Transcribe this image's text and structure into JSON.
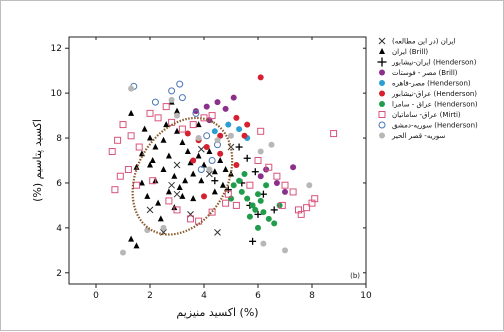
{
  "chart_data": {
    "type": "scatter",
    "panel_label": "(b)",
    "xlabel": "اکسید منیزیم (%)",
    "ylabel": "(%) اکسید پتاسیم",
    "xlim": [
      -1,
      10
    ],
    "ylim": [
      1.5,
      12.5
    ],
    "x_ticks": [
      0,
      2,
      4,
      6,
      8,
      10
    ],
    "y_ticks": [
      2,
      4,
      6,
      8,
      10,
      12
    ],
    "legend_position": "right",
    "ellipse": {
      "cx": 3.2,
      "cy": 6.3,
      "rx": 2.3,
      "ry": 2.0,
      "angle_deg": -60,
      "color": "#8a5a2b"
    },
    "series": [
      {
        "name": "ایران (در این مطالعه)",
        "marker": "x",
        "color": "#333333",
        "points": [
          [
            3.0,
            5.5
          ],
          [
            2.5,
            3.8
          ],
          [
            4.5,
            3.8
          ],
          [
            2.0,
            4.8
          ],
          [
            3.5,
            4.6
          ],
          [
            4.2,
            6.4
          ],
          [
            5.0,
            7.6
          ],
          [
            3.0,
            6.8
          ],
          [
            2.8,
            5.9
          ],
          [
            3.9,
            7.5
          ]
        ]
      },
      {
        "name": "ایران (Brill)",
        "marker": "triangle",
        "color": "#000000",
        "points": [
          [
            1.3,
            9.1
          ],
          [
            1.8,
            8.4
          ],
          [
            2.0,
            8.0
          ],
          [
            2.2,
            7.6
          ],
          [
            2.5,
            7.9
          ],
          [
            2.6,
            8.6
          ],
          [
            3.0,
            8.3
          ],
          [
            3.2,
            7.8
          ],
          [
            3.4,
            7.4
          ],
          [
            3.5,
            6.9
          ],
          [
            3.8,
            7.2
          ],
          [
            4.0,
            6.8
          ],
          [
            4.2,
            7.4
          ],
          [
            4.4,
            6.5
          ],
          [
            1.5,
            6.7
          ],
          [
            1.7,
            6.0
          ],
          [
            2.0,
            6.8
          ],
          [
            2.2,
            6.1
          ],
          [
            2.5,
            6.6
          ],
          [
            2.7,
            7.2
          ],
          [
            2.9,
            6.3
          ],
          [
            3.1,
            5.8
          ],
          [
            3.3,
            6.1
          ],
          [
            3.6,
            6.4
          ],
          [
            3.9,
            6.1
          ],
          [
            1.9,
            5.4
          ],
          [
            2.3,
            5.1
          ],
          [
            2.7,
            5.6
          ],
          [
            3.2,
            5.4
          ],
          [
            3.6,
            5.3
          ],
          [
            1.7,
            7.3
          ],
          [
            2.1,
            7.0
          ],
          [
            4.6,
            7.0
          ],
          [
            4.8,
            6.6
          ],
          [
            5.0,
            6.4
          ],
          [
            1.3,
            3.5
          ],
          [
            1.5,
            3.2
          ],
          [
            2.9,
            4.9
          ],
          [
            2.4,
            4.4
          ],
          [
            4.4,
            5.6
          ],
          [
            4.7,
            5.9
          ],
          [
            3.0,
            9.2
          ],
          [
            2.8,
            9.6
          ],
          [
            3.8,
            8.6
          ]
        ]
      },
      {
        "name": "ایران-نیشابور (Henderson)",
        "marker": "plus",
        "color": "#000000",
        "points": [
          [
            5.6,
            7.1
          ],
          [
            5.9,
            6.5
          ],
          [
            5.4,
            6.0
          ],
          [
            5.7,
            5.0
          ],
          [
            6.0,
            4.6
          ],
          [
            6.2,
            5.5
          ],
          [
            4.9,
            5.7
          ],
          [
            5.3,
            7.6
          ],
          [
            5.8,
            3.4
          ],
          [
            6.6,
            4.8
          ],
          [
            4.4,
            6.1
          ]
        ]
      },
      {
        "name": "مصر - فوستات (Brill)",
        "marker": "circle",
        "color": "#8b2f8b",
        "points": [
          [
            3.7,
            9.2
          ],
          [
            4.1,
            9.4
          ],
          [
            4.5,
            9.6
          ],
          [
            4.8,
            9.3
          ],
          [
            5.1,
            9.8
          ],
          [
            4.2,
            8.8
          ],
          [
            6.3,
            6.6
          ],
          [
            6.7,
            6.0
          ],
          [
            7.0,
            5.6
          ],
          [
            6.1,
            6.3
          ],
          [
            7.3,
            6.7
          ]
        ]
      },
      {
        "name": "مصر-قاهره (Henderson)",
        "marker": "circle",
        "color": "#2b9fd3",
        "points": [
          [
            4.4,
            8.3
          ],
          [
            4.9,
            8.6
          ],
          [
            5.3,
            8.4
          ],
          [
            5.6,
            8.0
          ]
        ]
      },
      {
        "name": "عراق-نیشابور (Henderson)",
        "marker": "circle",
        "color": "#d62030",
        "points": [
          [
            3.4,
            8.2
          ],
          [
            3.8,
            7.9
          ],
          [
            4.1,
            7.6
          ],
          [
            4.6,
            8.1
          ],
          [
            5.2,
            8.9
          ],
          [
            5.5,
            8.1
          ],
          [
            6.1,
            10.7
          ],
          [
            4.0,
            5.4
          ],
          [
            5.2,
            6.8
          ],
          [
            5.6,
            8.6
          ],
          [
            4.6,
            7.3
          ],
          [
            3.6,
            7.0
          ]
        ]
      },
      {
        "name": "عراق - سامرا (Henderson)",
        "marker": "circle",
        "color": "#1f9d4a",
        "points": [
          [
            5.1,
            5.9
          ],
          [
            5.4,
            5.6
          ],
          [
            5.6,
            5.3
          ],
          [
            5.8,
            5.0
          ],
          [
            6.0,
            5.5
          ],
          [
            6.2,
            4.7
          ],
          [
            6.4,
            4.4
          ],
          [
            6.6,
            4.2
          ],
          [
            6.0,
            4.0
          ],
          [
            5.7,
            4.5
          ],
          [
            5.3,
            6.1
          ],
          [
            6.3,
            5.9
          ],
          [
            6.8,
            5.0
          ],
          [
            5.5,
            6.4
          ],
          [
            5.9,
            4.8
          ],
          [
            6.1,
            5.2
          ],
          [
            5.0,
            5.3
          ]
        ]
      },
      {
        "name": "عراق- ساماتیان (Mirti)",
        "marker": "square-open",
        "color": "#d9547a",
        "points": [
          [
            0.6,
            7.4
          ],
          [
            0.8,
            7.9
          ],
          [
            0.9,
            6.3
          ],
          [
            0.7,
            5.7
          ],
          [
            1.0,
            8.6
          ],
          [
            1.3,
            8.1
          ],
          [
            1.6,
            7.6
          ],
          [
            2.0,
            9.1
          ],
          [
            2.3,
            8.9
          ],
          [
            2.6,
            9.4
          ],
          [
            2.8,
            8.7
          ],
          [
            3.2,
            8.4
          ],
          [
            3.6,
            8.6
          ],
          [
            4.0,
            8.9
          ],
          [
            4.3,
            9.0
          ],
          [
            1.2,
            6.6
          ],
          [
            1.5,
            5.9
          ],
          [
            2.1,
            6.1
          ],
          [
            2.7,
            5.2
          ],
          [
            3.0,
            4.8
          ],
          [
            3.5,
            4.4
          ],
          [
            3.8,
            4.3
          ],
          [
            4.3,
            4.7
          ],
          [
            4.8,
            5.1
          ],
          [
            5.2,
            5.0
          ],
          [
            5.7,
            5.9
          ],
          [
            6.0,
            7.0
          ],
          [
            6.4,
            6.7
          ],
          [
            6.7,
            6.3
          ],
          [
            7.0,
            5.9
          ],
          [
            7.3,
            5.6
          ],
          [
            7.6,
            4.6
          ],
          [
            7.8,
            4.9
          ],
          [
            8.0,
            5.1
          ],
          [
            8.1,
            5.3
          ],
          [
            7.5,
            4.8
          ],
          [
            8.8,
            8.2
          ],
          [
            6.1,
            8.3
          ],
          [
            4.9,
            5.5
          ],
          [
            6.9,
            5.0
          ]
        ]
      },
      {
        "name": "سوریه-دمشق (Henderson)",
        "marker": "circle-open",
        "color": "#4a76b5",
        "points": [
          [
            1.4,
            10.3
          ],
          [
            2.8,
            10.1
          ],
          [
            3.2,
            9.8
          ],
          [
            3.1,
            10.4
          ],
          [
            2.2,
            9.6
          ],
          [
            3.7,
            9.1
          ],
          [
            4.1,
            8.1
          ],
          [
            4.5,
            7.7
          ],
          [
            3.9,
            6.6
          ],
          [
            4.3,
            7.0
          ]
        ]
      },
      {
        "name": "سوریه- قصر الحیر",
        "marker": "circle",
        "color": "#b7b7b7",
        "points": [
          [
            1.0,
            2.9
          ],
          [
            1.3,
            10.2
          ],
          [
            2.8,
            9.7
          ],
          [
            3.0,
            9.0
          ],
          [
            3.8,
            8.0
          ],
          [
            4.2,
            6.6
          ],
          [
            4.5,
            7.9
          ],
          [
            5.0,
            8.1
          ],
          [
            6.1,
            7.4
          ],
          [
            6.5,
            7.7
          ],
          [
            6.2,
            3.3
          ],
          [
            7.0,
            3.0
          ],
          [
            7.9,
            5.9
          ],
          [
            1.9,
            3.9
          ],
          [
            2.5,
            4.0
          ]
        ]
      }
    ]
  }
}
